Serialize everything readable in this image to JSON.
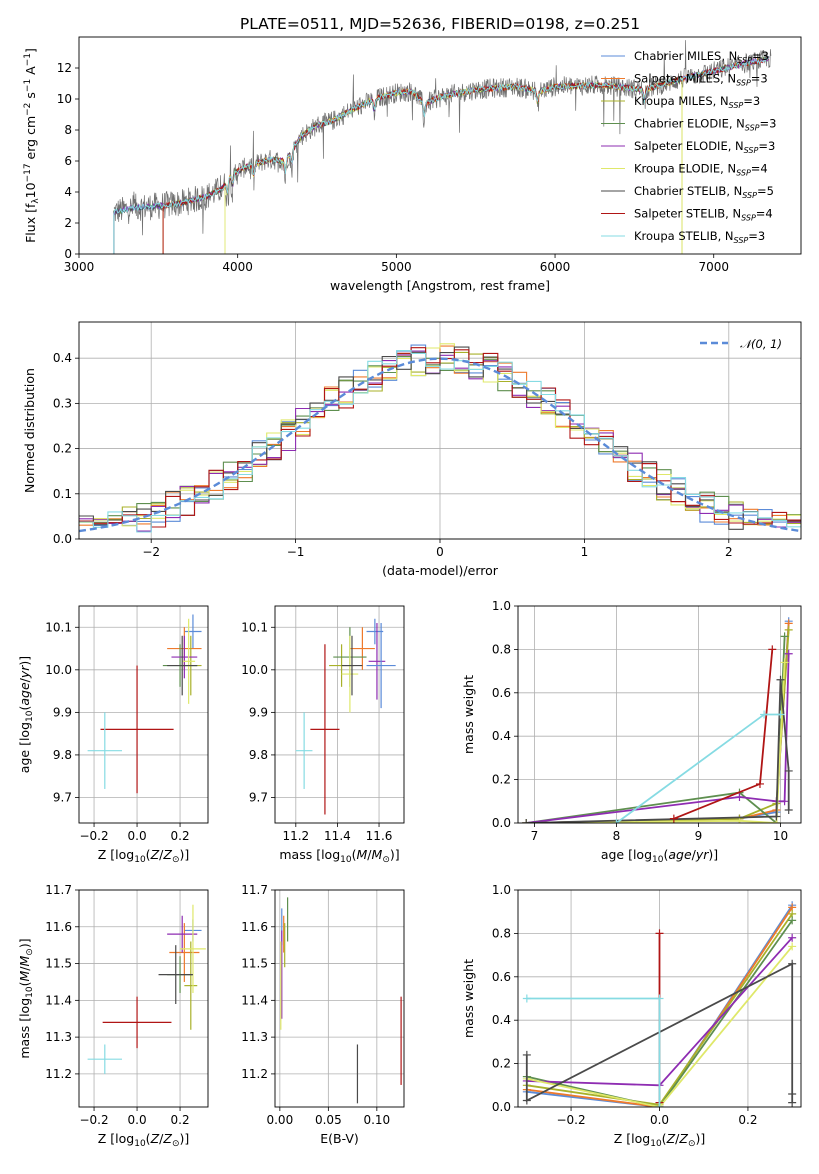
{
  "title": "PLATE=0511, MJD=52636, FIBERID=0198, z=0.251",
  "colors": {
    "Chabrier MILES": "#5b8bd8",
    "Salpeter MILES": "#ee7a2c",
    "Kroupa MILES": "#a8b12a",
    "Chabrier ELODIE": "#5e8f4f",
    "Salpeter ELODIE": "#8e2cb2",
    "Kroupa ELODIE": "#dfe86a",
    "Chabrier STELIB": "#4a4a4a",
    "Salpeter STELIB": "#b01515",
    "Kroupa STELIB": "#86dbe3",
    "data": "#707070",
    "gaussian": "#5b8bd8",
    "salpeter_elodie_hist": "#e986c6"
  },
  "chart_data": [
    {
      "id": "spectrum",
      "type": "line",
      "xlabel": "wavelength [Angstrom, rest frame]",
      "ylabel": "Flux [f_λ10^-17 erg cm^-2 s^-1 A^-1]",
      "xlim": [
        3000,
        7550
      ],
      "ylim": [
        0,
        14
      ],
      "xticks": [
        3000,
        4000,
        5000,
        6000,
        7000
      ],
      "yticks": [
        0,
        2,
        4,
        6,
        8,
        10,
        12
      ],
      "grid": false,
      "legend": "upper right",
      "series_names": [
        "Chabrier MILES, N_SSP=3",
        "Salpeter MILES, N_SSP=3",
        "Kroupa MILES, N_SSP=3",
        "Chabrier ELODIE, N_SSP=3",
        "Salpeter ELODIE, N_SSP=3",
        "Kroupa ELODIE, N_SSP=4",
        "Chabrier STELIB, N_SSP=5",
        "Salpeter STELIB, N_SSP=4",
        "Kroupa STELIB, N_SSP=3"
      ],
      "continuum_points": [
        [
          3220,
          2.7
        ],
        [
          3350,
          3.0
        ],
        [
          3500,
          3.1
        ],
        [
          3650,
          3.3
        ],
        [
          3800,
          3.7
        ],
        [
          3900,
          4.2
        ],
        [
          3970,
          5.2
        ],
        [
          4050,
          5.6
        ],
        [
          4200,
          6.1
        ],
        [
          4300,
          6.0
        ],
        [
          4400,
          7.6
        ],
        [
          4500,
          8.3
        ],
        [
          4600,
          8.6
        ],
        [
          4700,
          9.2
        ],
        [
          4860,
          10.0
        ],
        [
          5000,
          10.4
        ],
        [
          5100,
          10.5
        ],
        [
          5175,
          9.7
        ],
        [
          5300,
          10.2
        ],
        [
          5500,
          10.6
        ],
        [
          5750,
          10.8
        ],
        [
          5900,
          10.5
        ],
        [
          6000,
          10.8
        ],
        [
          6300,
          10.9
        ],
        [
          6563,
          10.6
        ],
        [
          6800,
          11.3
        ],
        [
          7000,
          11.8
        ],
        [
          7200,
          12.3
        ],
        [
          7350,
          12.6
        ]
      ],
      "model_starts": [
        3220,
        3530,
        3530,
        3220,
        3220,
        3920,
        3220,
        3530,
        3220
      ],
      "model_ends": [
        7350,
        7350,
        6800,
        7350,
        7350,
        6800,
        7350,
        7350,
        7350
      ]
    },
    {
      "id": "residuals",
      "type": "histogram",
      "xlabel": "(data-model)/error",
      "ylabel": "Normed distribution",
      "xlim": [
        -2.5,
        2.5
      ],
      "ylim": [
        0,
        0.48
      ],
      "xticks": [
        -2,
        -1,
        0,
        1,
        2
      ],
      "yticks": [
        0.0,
        0.1,
        0.2,
        0.3,
        0.4
      ],
      "grid": true,
      "legend": "upper right",
      "gaussian_label": "𝒩(0, 1)"
    },
    {
      "id": "age_vs_Z",
      "type": "scatter",
      "xlabel": "Z [log10(Z/Z⊙)]",
      "ylabel": "age [log10(age/yr)]",
      "xlim": [
        -0.27,
        0.33
      ],
      "ylim": [
        9.64,
        10.15
      ],
      "xticks": [
        -0.2,
        0.0,
        0.2
      ],
      "yticks": [
        9.7,
        9.8,
        9.9,
        10.0,
        10.1
      ],
      "grid": true,
      "points": [
        {
          "x": 0.26,
          "y": 10.09,
          "xe": 0.04,
          "ye": 0.04
        },
        {
          "x": 0.22,
          "y": 10.05,
          "xe": 0.08,
          "ye": 0.05
        },
        {
          "x": 0.25,
          "y": 10.01,
          "xe": 0.05,
          "ye": 0.07
        },
        {
          "x": 0.2,
          "y": 10.01,
          "xe": 0.08,
          "ye": 0.05
        },
        {
          "x": 0.22,
          "y": 10.03,
          "xe": 0.06,
          "ye": 0.05
        },
        {
          "x": 0.24,
          "y": 10.02,
          "xe": 0.03,
          "ye": 0.1
        },
        {
          "x": 0.21,
          "y": 10.01,
          "xe": 0.07,
          "ye": 0.07
        },
        {
          "x": 0.0,
          "y": 9.86,
          "xe": 0.17,
          "ye": 0.15
        },
        {
          "x": -0.15,
          "y": 9.81,
          "xe": 0.08,
          "ye": 0.09
        }
      ]
    },
    {
      "id": "age_vs_mass",
      "type": "scatter",
      "xlabel": "mass [log10(M/M⊙)]",
      "ylabel": "",
      "xlim": [
        11.1,
        11.72
      ],
      "ylim": [
        9.64,
        10.15
      ],
      "xticks": [
        11.2,
        11.4,
        11.6
      ],
      "yticks": [
        9.7,
        9.8,
        9.9,
        10.0,
        10.1
      ],
      "grid": true,
      "points": [
        {
          "x": 11.58,
          "y": 10.09,
          "xe": 0.04,
          "ye": 0.03
        },
        {
          "x": 11.52,
          "y": 10.05,
          "xe": 0.06,
          "ye": 0.05
        },
        {
          "x": 11.42,
          "y": 10.01,
          "xe": 0.06,
          "ye": 0.05
        },
        {
          "x": 11.46,
          "y": 10.03,
          "xe": 0.08,
          "ye": 0.07
        },
        {
          "x": 11.59,
          "y": 10.02,
          "xe": 0.04,
          "ye": 0.09
        },
        {
          "x": 11.46,
          "y": 9.99,
          "xe": 0.04,
          "ye": 0.09
        },
        {
          "x": 11.47,
          "y": 10.01,
          "xe": 0.05,
          "ye": 0.07
        },
        {
          "x": 11.34,
          "y": 9.86,
          "xe": 0.07,
          "ye": 0.2
        },
        {
          "x": 11.24,
          "y": 9.81,
          "xe": 0.04,
          "ye": 0.09
        },
        {
          "x": 11.61,
          "y": 10.01,
          "xe": 0.07,
          "ye": 0.1
        }
      ]
    },
    {
      "id": "massweight_vs_age",
      "type": "line",
      "xlabel": "age [log10(age/yr)]",
      "ylabel": "mass weight",
      "xlim": [
        6.8,
        10.25
      ],
      "ylim": [
        0,
        1.0
      ],
      "xticks": [
        7,
        8,
        9,
        10
      ],
      "yticks": [
        0.0,
        0.2,
        0.4,
        0.6,
        0.8,
        1.0
      ],
      "grid": true,
      "series": [
        {
          "name": "Chabrier MILES",
          "points": [
            [
              6.9,
              0.0
            ],
            [
              9.5,
              0.02
            ],
            [
              9.95,
              0.05
            ],
            [
              10.1,
              0.93
            ]
          ]
        },
        {
          "name": "Salpeter MILES",
          "points": [
            [
              6.9,
              0.0
            ],
            [
              9.5,
              0.02
            ],
            [
              9.95,
              0.06
            ],
            [
              10.1,
              0.92
            ]
          ]
        },
        {
          "name": "Kroupa MILES",
          "points": [
            [
              6.9,
              0.0
            ],
            [
              9.5,
              0.02
            ],
            [
              9.95,
              0.09
            ],
            [
              10.1,
              0.89
            ]
          ]
        },
        {
          "name": "Chabrier ELODIE",
          "points": [
            [
              6.9,
              0.0
            ],
            [
              9.5,
              0.14
            ],
            [
              9.95,
              0.0
            ],
            [
              10.05,
              0.86
            ]
          ]
        },
        {
          "name": "Salpeter ELODIE",
          "points": [
            [
              6.9,
              0.0
            ],
            [
              9.5,
              0.12
            ],
            [
              9.95,
              0.1
            ],
            [
              10.05,
              0.1
            ],
            [
              10.1,
              0.78
            ]
          ]
        },
        {
          "name": "Kroupa ELODIE",
          "points": [
            [
              6.9,
              0.0
            ],
            [
              9.5,
              0.01
            ],
            [
              9.95,
              0.0
            ],
            [
              10.05,
              0.74
            ]
          ]
        },
        {
          "name": "Chabrier STELIB",
          "points": [
            [
              6.9,
              0.0
            ],
            [
              9.95,
              0.03
            ],
            [
              10.0,
              0.66
            ],
            [
              10.1,
              0.24
            ],
            [
              10.1,
              0.06
            ]
          ]
        },
        {
          "name": "Salpeter STELIB",
          "points": [
            [
              8.7,
              0.02
            ],
            [
              9.75,
              0.18
            ],
            [
              9.9,
              0.8
            ]
          ]
        },
        {
          "name": "Kroupa STELIB",
          "points": [
            [
              8.0,
              0.0
            ],
            [
              9.8,
              0.5
            ],
            [
              10.0,
              0.5
            ]
          ]
        }
      ]
    },
    {
      "id": "mass_vs_Z",
      "type": "scatter",
      "xlabel": "Z [log10(Z/Z⊙)]",
      "ylabel": "mass [log10(M/M⊙)]",
      "xlim": [
        -0.27,
        0.33
      ],
      "ylim": [
        11.11,
        11.7
      ],
      "xticks": [
        -0.2,
        0.0,
        0.2
      ],
      "yticks": [
        11.2,
        11.3,
        11.4,
        11.5,
        11.6,
        11.7
      ],
      "grid": true,
      "points": [
        {
          "x": 0.26,
          "y": 11.59,
          "xe": 0.04,
          "ye": 0.03
        },
        {
          "x": 0.22,
          "y": 11.53,
          "xe": 0.07,
          "ye": 0.08
        },
        {
          "x": 0.25,
          "y": 11.44,
          "xe": 0.03,
          "ye": 0.12
        },
        {
          "x": 0.2,
          "y": 11.47,
          "xe": 0.06,
          "ye": 0.05
        },
        {
          "x": 0.21,
          "y": 11.58,
          "xe": 0.07,
          "ye": 0.05
        },
        {
          "x": 0.26,
          "y": 11.54,
          "xe": 0.06,
          "ye": 0.12
        },
        {
          "x": 0.18,
          "y": 11.47,
          "xe": 0.08,
          "ye": 0.08
        },
        {
          "x": 0.0,
          "y": 11.34,
          "xe": 0.16,
          "ye": 0.07
        },
        {
          "x": -0.15,
          "y": 11.24,
          "xe": 0.08,
          "ye": 0.04
        }
      ]
    },
    {
      "id": "mass_vs_EBV",
      "type": "scatter",
      "xlabel": "E(B-V)",
      "ylabel": "",
      "xlim": [
        -0.005,
        0.128
      ],
      "ylim": [
        11.11,
        11.7
      ],
      "xticks": [
        0.0,
        0.05,
        0.1
      ],
      "yticks": [
        11.2,
        11.3,
        11.4,
        11.5,
        11.6,
        11.7
      ],
      "grid": true,
      "points": [
        {
          "x": 0.002,
          "y": 11.6,
          "xe": 0.0,
          "ye": 0.05
        },
        {
          "x": 0.004,
          "y": 11.58,
          "xe": 0.0,
          "ye": 0.05
        },
        {
          "x": 0.005,
          "y": 11.55,
          "xe": 0.0,
          "ye": 0.06
        },
        {
          "x": 0.008,
          "y": 11.62,
          "xe": 0.0,
          "ye": 0.06
        },
        {
          "x": 0.002,
          "y": 11.47,
          "xe": 0.0,
          "ye": 0.12
        },
        {
          "x": 0.001,
          "y": 11.44,
          "xe": 0.0,
          "ye": 0.12
        },
        {
          "x": 0.08,
          "y": 11.2,
          "xe": 0.0,
          "ye": 0.08
        },
        {
          "x": 0.125,
          "y": 11.29,
          "xe": 0.0,
          "ye": 0.12
        }
      ]
    },
    {
      "id": "massweight_vs_Z",
      "type": "line",
      "xlabel": "Z [log10(Z/Z⊙)]",
      "ylabel": "mass weight",
      "xlim": [
        -0.32,
        0.32
      ],
      "ylim": [
        0,
        1.0
      ],
      "xticks": [
        -0.2,
        0.0,
        0.2
      ],
      "yticks": [
        0.0,
        0.2,
        0.4,
        0.6,
        0.8,
        1.0
      ],
      "grid": true,
      "series": [
        {
          "name": "Chabrier MILES",
          "points": [
            [
              -0.3,
              0.07
            ],
            [
              0.0,
              0.0
            ],
            [
              0.3,
              0.93
            ]
          ]
        },
        {
          "name": "Salpeter MILES",
          "points": [
            [
              -0.3,
              0.08
            ],
            [
              0.0,
              0.0
            ],
            [
              0.3,
              0.92
            ]
          ]
        },
        {
          "name": "Kroupa MILES",
          "points": [
            [
              -0.3,
              0.1
            ],
            [
              0.0,
              0.01
            ],
            [
              0.3,
              0.89
            ]
          ]
        },
        {
          "name": "Chabrier ELODIE",
          "points": [
            [
              -0.3,
              0.14
            ],
            [
              0.0,
              0.0
            ],
            [
              0.3,
              0.86
            ]
          ]
        },
        {
          "name": "Salpeter ELODIE",
          "points": [
            [
              -0.3,
              0.12
            ],
            [
              0.0,
              0.1
            ],
            [
              0.3,
              0.78
            ]
          ]
        },
        {
          "name": "Kroupa ELODIE",
          "points": [
            [
              -0.3,
              0.13
            ],
            [
              0.0,
              0.0
            ],
            [
              0.3,
              0.74
            ]
          ]
        },
        {
          "name": "Chabrier STELIB",
          "points": [
            [
              -0.3,
              0.24
            ],
            [
              -0.3,
              0.03
            ],
            [
              0.3,
              0.66
            ],
            [
              0.3,
              0.06
            ],
            [
              0.3,
              0.02
            ]
          ]
        },
        {
          "name": "Salpeter STELIB",
          "points": [
            [
              0.0,
              0.8
            ],
            [
              0.0,
              0.02
            ]
          ]
        },
        {
          "name": "Kroupa STELIB",
          "points": [
            [
              -0.3,
              0.5
            ],
            [
              0.0,
              0.5
            ],
            [
              0.0,
              0.0
            ]
          ]
        }
      ]
    }
  ]
}
